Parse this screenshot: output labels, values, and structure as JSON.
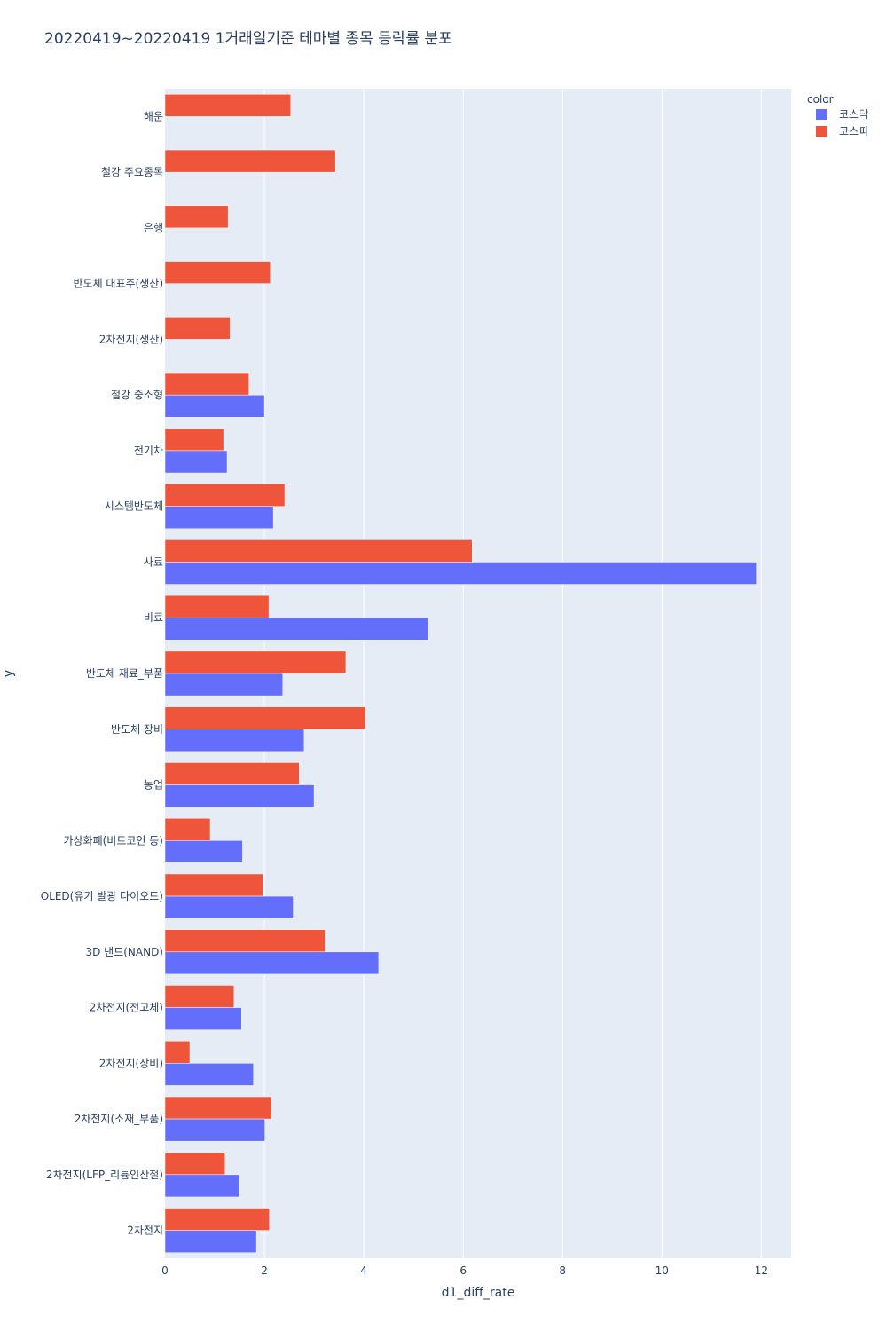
{
  "chart_data": {
    "type": "bar",
    "orientation": "horizontal",
    "barmode": "group",
    "title": "20220419~20220419 1거래일기준 테마별 종목 등락률 분포",
    "xlabel": "d1_diff_rate",
    "ylabel": "y",
    "xlim": [
      0,
      12.6
    ],
    "xticks": [
      0,
      2,
      4,
      6,
      8,
      10,
      12
    ],
    "grid": true,
    "legend_title": "color",
    "legend_position": "top-right",
    "categories": [
      "해운",
      "철강 주요종목",
      "은행",
      "반도체 대표주(생산)",
      "2차전지(생산)",
      "철강 중소형",
      "전기차",
      "시스템반도체",
      "사료",
      "비료",
      "반도체 재료_부품",
      "반도체 장비",
      "농업",
      "가상화폐(비트코인 등)",
      "OLED(유기 발광 다이오드)",
      "3D 낸드(NAND)",
      "2차전지(전고체)",
      "2차전지(장비)",
      "2차전지(소재_부품)",
      "2차전지(LFP_리튬인산철)",
      "2차전지"
    ],
    "series": [
      {
        "name": "코스닥",
        "color": "#636efa",
        "values": [
          null,
          null,
          null,
          null,
          null,
          2.0,
          1.25,
          2.18,
          11.9,
          5.3,
          2.37,
          2.8,
          3.0,
          1.56,
          2.58,
          4.3,
          1.54,
          1.78,
          2.01,
          1.49,
          1.84
        ]
      },
      {
        "name": "코스피",
        "color": "#ef553b",
        "values": [
          2.53,
          3.43,
          1.27,
          2.12,
          1.31,
          1.69,
          1.18,
          2.41,
          6.18,
          2.09,
          3.64,
          4.03,
          2.7,
          0.91,
          1.97,
          3.22,
          1.39,
          0.5,
          2.14,
          1.21,
          2.1
        ]
      }
    ]
  }
}
